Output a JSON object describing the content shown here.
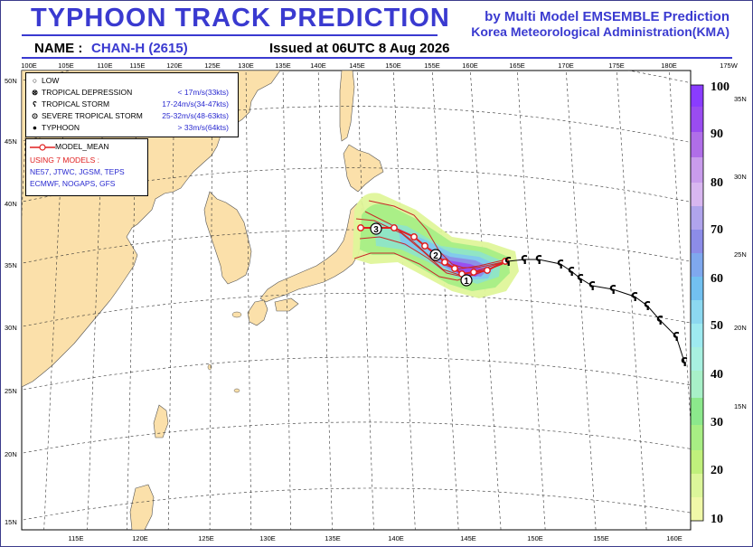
{
  "header": {
    "title": "TYPHOON  TRACK  PREDICTION",
    "subtitle_line1": "by Multi Model EMSEMBLE Prediction",
    "subtitle_line2": "Korea Meteorological Administration(KMA)",
    "name_label": "NAME :",
    "name_value": "CHAN-H (2615)",
    "issued": "Issued at  06UTC  8 Aug 2026"
  },
  "map": {
    "top_lon_labels": [
      "100E",
      "105E",
      "110E",
      "115E",
      "120E",
      "125E",
      "130E",
      "135E",
      "140E",
      "145E",
      "150E",
      "155E",
      "160E",
      "165E",
      "170E",
      "175E",
      "180E",
      "175W"
    ],
    "bottom_lon_labels": [
      "115E",
      "120E",
      "125E",
      "130E",
      "135E",
      "140E",
      "145E",
      "150E",
      "155E",
      "160E"
    ],
    "left_lat_labels": [
      "50N",
      "45N",
      "40N",
      "35N",
      "30N",
      "25N",
      "20N",
      "15N"
    ],
    "right_lat_labels": [
      "35N",
      "30N",
      "25N",
      "20N",
      "15N"
    ],
    "land_color": "#fbe0aa",
    "sea_color": "#ffffff"
  },
  "legend": {
    "intensity": [
      {
        "icon": "low-icon",
        "symbol": "○",
        "label": "LOW",
        "range": ""
      },
      {
        "icon": "tropical-depression-icon",
        "symbol": "⊗",
        "label": "TROPICAL DEPRESSION",
        "range": "< 17m/s(33kts)"
      },
      {
        "icon": "tropical-storm-icon",
        "symbol": "ʕ",
        "label": "TROPICAL STORM",
        "range": "17-24m/s(34-47kts)"
      },
      {
        "icon": "severe-tropical-storm-icon",
        "symbol": "⊙",
        "label": "SEVERE TROPICAL STORM",
        "range": "25-32m/s(48-63kts)"
      },
      {
        "icon": "typhoon-icon",
        "symbol": "●",
        "label": "TYPHOON",
        "range": "> 33m/s(64kts)"
      }
    ],
    "model_mean_label": "MODEL_MEAN",
    "using_models": "USING 7 MODELS :",
    "models_line1": "NE57, JTWC, JGSM, TEPS",
    "models_line2": "ECMWF, NOGAPS, GFS",
    "mean_color": "#e02020",
    "text_color": "#2a2ad0"
  },
  "track": {
    "day_labels": [
      "1",
      "2",
      "3"
    ]
  },
  "colorbar": {
    "labels": [
      "100",
      "90",
      "80",
      "70",
      "60",
      "50",
      "40",
      "30",
      "20",
      "10"
    ],
    "colors": [
      "#8a3cff",
      "#a855e8",
      "#c07ee8",
      "#d3a8f0",
      "#8c8ce8",
      "#6fa6f0",
      "#8cd8f0",
      "#a8f0e0",
      "#8ce88c",
      "#c0f07c",
      "#f0f8a0"
    ]
  }
}
